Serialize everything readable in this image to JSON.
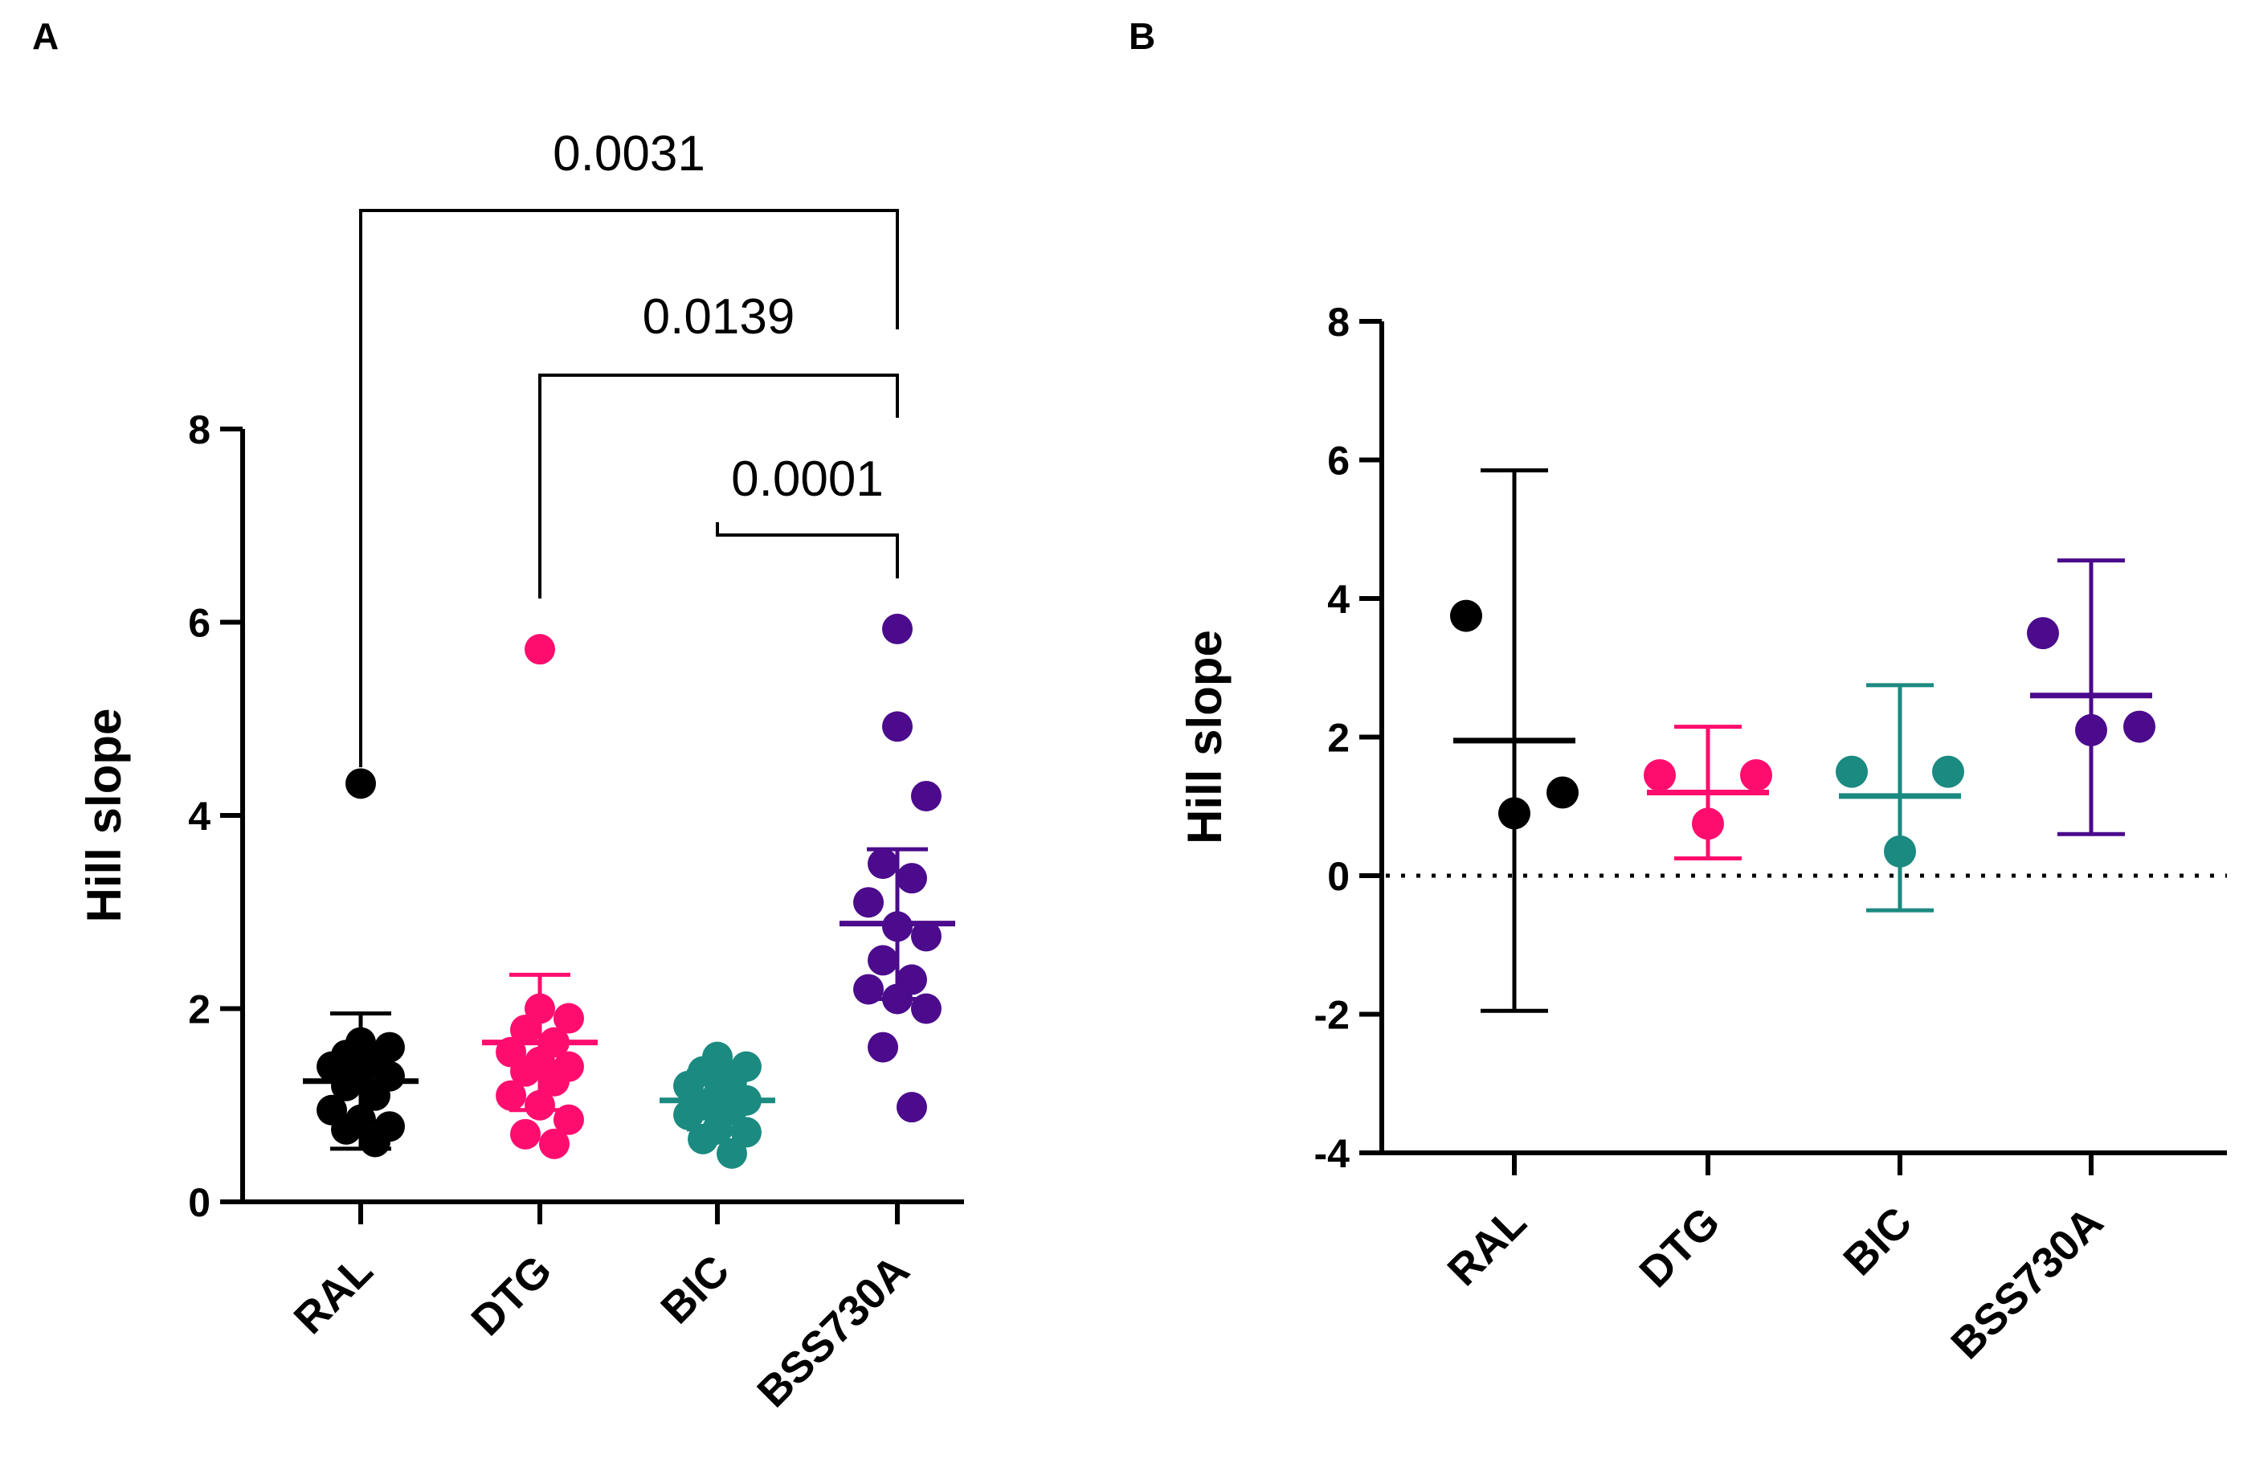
{
  "panels": {
    "a": {
      "letter": "A"
    },
    "b": {
      "letter": "B"
    }
  },
  "chart_data": [
    {
      "type": "scatter",
      "panel": "A",
      "ylabel": "Hill slope",
      "ylim": [
        0,
        8
      ],
      "yticks": [
        0,
        2,
        4,
        6,
        8
      ],
      "categories": [
        "RAL",
        "DTG",
        "BIC",
        "BSS730A"
      ],
      "colors": [
        "#000000",
        "#ff0d6e",
        "#1b8a80",
        "#4b0b8c"
      ],
      "groups": [
        {
          "name": "RAL",
          "mean": 1.25,
          "sd_upper": 1.95,
          "sd_lower": 0.55,
          "points": [
            4.33,
            1.65,
            1.6,
            1.52,
            1.45,
            1.4,
            1.35,
            1.3,
            1.2,
            1.1,
            0.95,
            0.85,
            0.78,
            0.75,
            0.62
          ]
        },
        {
          "name": "DTG",
          "mean": 1.65,
          "sd_upper": 2.35,
          "sd_lower": 0.95,
          "points": [
            5.72,
            2.0,
            1.9,
            1.78,
            1.65,
            1.55,
            1.45,
            1.4,
            1.35,
            1.25,
            1.1,
            1.0,
            0.85,
            0.7,
            0.6
          ]
        },
        {
          "name": "BIC",
          "mean": 1.05,
          "sd_upper": 1.35,
          "sd_lower": 0.75,
          "points": [
            1.5,
            1.45,
            1.4,
            1.35,
            1.25,
            1.2,
            1.1,
            1.05,
            1.0,
            0.95,
            0.9,
            0.75,
            0.72,
            0.65,
            0.5
          ]
        },
        {
          "name": "BSS730A",
          "mean": 2.88,
          "sd_upper": 3.65,
          "sd_lower": 2.1,
          "points": [
            5.93,
            4.92,
            4.2,
            3.5,
            3.35,
            3.1,
            2.85,
            2.75,
            2.5,
            2.3,
            2.2,
            2.1,
            2.0,
            1.6,
            0.98
          ]
        }
      ],
      "comparisons": [
        {
          "from": "RAL",
          "to": "BSS730A",
          "p": "0.0031"
        },
        {
          "from": "DTG",
          "to": "BSS730A",
          "p": "0.0139"
        },
        {
          "from": "BIC",
          "to": "BSS730A",
          "p": "0.0001"
        }
      ]
    },
    {
      "type": "scatter",
      "panel": "B",
      "ylabel": "Hill slope",
      "ylim": [
        -4,
        8
      ],
      "yticks": [
        -4,
        -2,
        0,
        2,
        4,
        6,
        8
      ],
      "reference_line": 0,
      "categories": [
        "RAL",
        "DTG",
        "BIC",
        "BSS730A"
      ],
      "colors": [
        "#000000",
        "#ff0d6e",
        "#1b8a80",
        "#4b0b8c"
      ],
      "groups": [
        {
          "name": "RAL",
          "mean": 1.95,
          "sd_upper": 5.85,
          "sd_lower": -1.95,
          "points": [
            3.75,
            1.2,
            0.9
          ]
        },
        {
          "name": "DTG",
          "mean": 1.2,
          "sd_upper": 2.15,
          "sd_lower": 0.25,
          "points": [
            1.45,
            1.45,
            0.75
          ]
        },
        {
          "name": "BIC",
          "mean": 1.15,
          "sd_upper": 2.75,
          "sd_lower": -0.5,
          "points": [
            1.5,
            1.5,
            0.35
          ]
        },
        {
          "name": "BSS730A",
          "mean": 2.6,
          "sd_upper": 4.55,
          "sd_lower": 0.6,
          "points": [
            3.5,
            2.15,
            2.1
          ]
        }
      ]
    }
  ]
}
